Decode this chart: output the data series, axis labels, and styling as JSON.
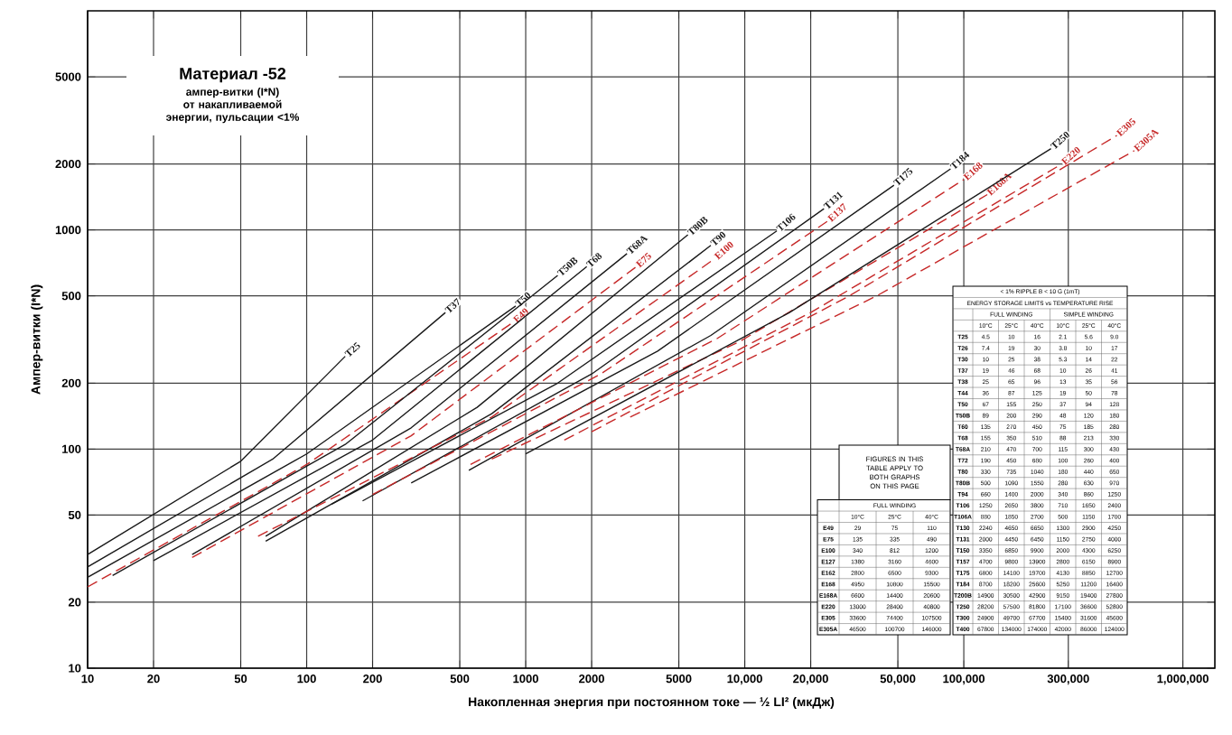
{
  "chart_data": {
    "type": "line",
    "title": "Материал -52",
    "subtitle": "ампер-витки (I*N) от накапливаемой энергии, пульсации <1%",
    "xlabel": "Накопленная энергия при постоянном токе — ½ LI² (мкДж)",
    "ylabel": "Ампер-витки (I*N)",
    "log": "xy",
    "grid": true,
    "xlim": [
      10,
      1400000
    ],
    "ylim": [
      10,
      10000
    ],
    "xticks": [
      10,
      20,
      50,
      100,
      200,
      500,
      1000,
      2000,
      5000,
      {
        "value": 10000,
        "label": "10,000"
      },
      {
        "value": 20000,
        "label": "20,000"
      },
      {
        "value": 50000,
        "label": "50,000"
      },
      {
        "value": 100000,
        "label": "100,000"
      },
      {
        "value": 300000,
        "label": "300,000"
      },
      {
        "value": 1000000,
        "label": "1,000,000"
      }
    ],
    "yticks": [
      10,
      20,
      50,
      100,
      200,
      500,
      1000,
      2000,
      5000
    ],
    "series": [
      {
        "name": "T25",
        "color": "#1a1a1a",
        "line_style": "solid",
        "x": [
          10,
          50,
          150
        ],
        "values": [
          33,
          88,
          265
        ]
      },
      {
        "name": "T37",
        "color": "#1a1a1a",
        "line_style": "solid",
        "x": [
          10,
          70,
          430
        ],
        "values": [
          29,
          90,
          420
        ]
      },
      {
        "name": "T50",
        "color": "#1a1a1a",
        "line_style": "solid",
        "x": [
          10,
          100,
          900
        ],
        "values": [
          26,
          95,
          450
        ]
      },
      {
        "name": "E49",
        "color": "#c62828",
        "line_style": "dashed",
        "x": [
          10,
          100,
          880
        ],
        "values": [
          23.5,
          85,
          380
        ]
      },
      {
        "name": "T50B",
        "color": "#1a1a1a",
        "line_style": "solid",
        "x": [
          13,
          150,
          1400
        ],
        "values": [
          26.5,
          105,
          620
        ]
      },
      {
        "name": "T68",
        "color": "#1a1a1a",
        "line_style": "solid",
        "x": [
          20,
          200,
          1900
        ],
        "values": [
          31,
          110,
          680
        ]
      },
      {
        "name": "T68A",
        "color": "#1a1a1a",
        "line_style": "solid",
        "x": [
          30,
          300,
          2900
        ],
        "values": [
          33,
          125,
          780
        ]
      },
      {
        "name": "E75",
        "color": "#c62828",
        "line_style": "dashed",
        "x": [
          30,
          300,
          3200
        ],
        "values": [
          32,
          115,
          680
        ]
      },
      {
        "name": "T80B",
        "color": "#1a1a1a",
        "line_style": "solid",
        "x": [
          65,
          600,
          5500
        ],
        "values": [
          40,
          155,
          950
        ]
      },
      {
        "name": "T90",
        "color": "#1a1a1a",
        "line_style": "solid",
        "x": [
          65,
          700,
          7000
        ],
        "values": [
          38,
          145,
          850
        ]
      },
      {
        "name": "E100",
        "color": "#c62828",
        "line_style": "dashed",
        "x": [
          60,
          700,
          7300
        ],
        "values": [
          40,
          140,
          740
        ]
      },
      {
        "name": "T106",
        "color": "#1a1a1a",
        "line_style": "solid",
        "x": [
          130,
          1400,
          14000
        ],
        "values": [
          56,
          200,
          990
        ]
      },
      {
        "name": "T131",
        "color": "#1a1a1a",
        "line_style": "solid",
        "x": [
          180,
          2000,
          23000
        ],
        "values": [
          58,
          220,
          1250
        ]
      },
      {
        "name": "E137",
        "color": "#c62828",
        "line_style": "dashed",
        "x": [
          200,
          2200,
          24000
        ],
        "values": [
          62,
          220,
          1100
        ]
      },
      {
        "name": "T175",
        "color": "#1a1a1a",
        "line_style": "solid",
        "x": [
          300,
          4000,
          48000
        ],
        "values": [
          70,
          280,
          1600
        ]
      },
      {
        "name": "T184",
        "color": "#1a1a1a",
        "line_style": "solid",
        "x": [
          550,
          7000,
          87000
        ],
        "values": [
          80,
          330,
          1900
        ]
      },
      {
        "name": "E168",
        "color": "#c62828",
        "line_style": "dashed",
        "x": [
          560,
          7500,
          100000
        ],
        "values": [
          85,
          320,
          1700
        ]
      },
      {
        "name": "E168A",
        "color": "#c62828",
        "line_style": "dashed",
        "x": [
          700,
          9500,
          128000
        ],
        "values": [
          90,
          310,
          1450
        ]
      },
      {
        "name": "T250",
        "color": "#1a1a1a",
        "line_style": "solid",
        "x": [
          1000,
          16000,
          250000
        ],
        "values": [
          95,
          420,
          2350
        ]
      },
      {
        "name": "E220",
        "color": "#c62828",
        "line_style": "dashed",
        "x": [
          1500,
          20000,
          280000
        ],
        "values": [
          110,
          420,
          2000
        ]
      },
      {
        "name": "E305",
        "color": "#c62828",
        "line_style": "dashed",
        "x": [
          2000,
          30000,
          500000
        ],
        "values": [
          120,
          500,
          2700
        ]
      },
      {
        "name": "E305A",
        "color": "#c62828",
        "line_style": "dashed",
        "x": [
          3000,
          40000,
          600000
        ],
        "values": [
          140,
          500,
          2300
        ]
      }
    ],
    "annotations": [
      "< 1% RIPPLE   B < 10 G (1mT)",
      "ENERGY STORAGE LIMITS vs TEMPERATURE RISE",
      "FULL WINDING",
      "SIMPLE WINDING",
      "10°C",
      "25°C",
      "40°C",
      "10°C",
      "25°C",
      "40°C",
      "T25",
      "4.5",
      "10",
      "16",
      "2.1",
      "5.6",
      "9.0",
      "T26",
      "7.4",
      "19",
      "30",
      "3.8",
      "10",
      "17",
      "T30",
      "10",
      "25",
      "38",
      "5.3",
      "14",
      "22",
      "T37",
      "19",
      "46",
      "68",
      "10",
      "26",
      "41",
      "T38",
      "25",
      "65",
      "96",
      "13",
      "35",
      "56",
      "T44",
      "36",
      "87",
      "125",
      "19",
      "50",
      "78",
      "T50",
      "67",
      "155",
      "250",
      "37",
      "94",
      "128",
      "T50B",
      "89",
      "200",
      "290",
      "48",
      "120",
      "180",
      "T60",
      "135",
      "270",
      "450",
      "75",
      "185",
      "280",
      "T68",
      "155",
      "350",
      "510",
      "88",
      "213",
      "330",
      "T68A",
      "210",
      "470",
      "700",
      "115",
      "300",
      "430",
      "T72",
      "190",
      "450",
      "680",
      "100",
      "260",
      "400",
      "T80",
      "330",
      "735",
      "1040",
      "180",
      "440",
      "650",
      "T80B",
      "500",
      "1090",
      "1550",
      "280",
      "630",
      "970",
      "T94",
      "660",
      "1400",
      "2000",
      "340",
      "860",
      "1250",
      "T106",
      "1250",
      "2650",
      "3800",
      "710",
      "1650",
      "2400",
      "T106A",
      "880",
      "1850",
      "2700",
      "500",
      "1150",
      "1700",
      "T130",
      "2240",
      "4650",
      "6650",
      "1300",
      "2900",
      "4250",
      "T131",
      "2000",
      "4450",
      "6450",
      "1150",
      "2750",
      "4000",
      "T150",
      "3350",
      "6850",
      "9900",
      "2000",
      "4300",
      "6250",
      "T157",
      "4700",
      "9800",
      "13900",
      "2800",
      "6150",
      "8900",
      "T175",
      "6800",
      "14100",
      "19700",
      "4130",
      "8850",
      "12700",
      "T184",
      "8700",
      "18200",
      "25600",
      "5250",
      "11200",
      "16400",
      "T200B",
      "14900",
      "30500",
      "42900",
      "9150",
      "19400",
      "27800",
      "T250",
      "28200",
      "57500",
      "81800",
      "17100",
      "36600",
      "52800",
      "T300",
      "24900",
      "49700",
      "67700",
      "15400",
      "31600",
      "45600",
      "T400",
      "67800",
      "134000",
      "174000",
      "42000",
      "86000",
      "124000",
      "FIGURES IN THIS TABLE APPLY TO BOTH GRAPHS ON THIS PAGE",
      "FULL WINDING",
      "10°C",
      "25°C",
      "40°C",
      "E49",
      "29",
      "75",
      "110",
      "E75",
      "135",
      "335",
      "490",
      "E100",
      "340",
      "812",
      "1200",
      "E127",
      "1380",
      "3160",
      "4600",
      "E162",
      "2800",
      "6500",
      "9300",
      "E168",
      "4950",
      "10800",
      "15500",
      "E168A",
      "6600",
      "14400",
      "20600",
      "E220",
      "13000",
      "28400",
      "40800",
      "E305",
      "33600",
      "74400",
      "107500",
      "E305A",
      "46500",
      "100700",
      "146000"
    ]
  }
}
